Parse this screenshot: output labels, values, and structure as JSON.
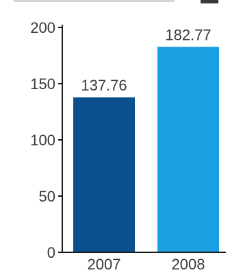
{
  "chart_data": {
    "type": "bar",
    "categories": [
      "2007",
      "2008"
    ],
    "values": [
      137.76,
      182.77
    ],
    "value_labels": [
      "137.76",
      "182.77"
    ],
    "title": "",
    "xlabel": "",
    "ylabel": "",
    "ylim": [
      0,
      200
    ],
    "yticks": [
      0,
      50,
      100,
      150,
      200
    ],
    "ytick_labels": [
      "0",
      "50",
      "100",
      "150",
      "200"
    ],
    "grid": false,
    "colors": [
      "#0a4f8e",
      "#1aa0e0"
    ]
  }
}
